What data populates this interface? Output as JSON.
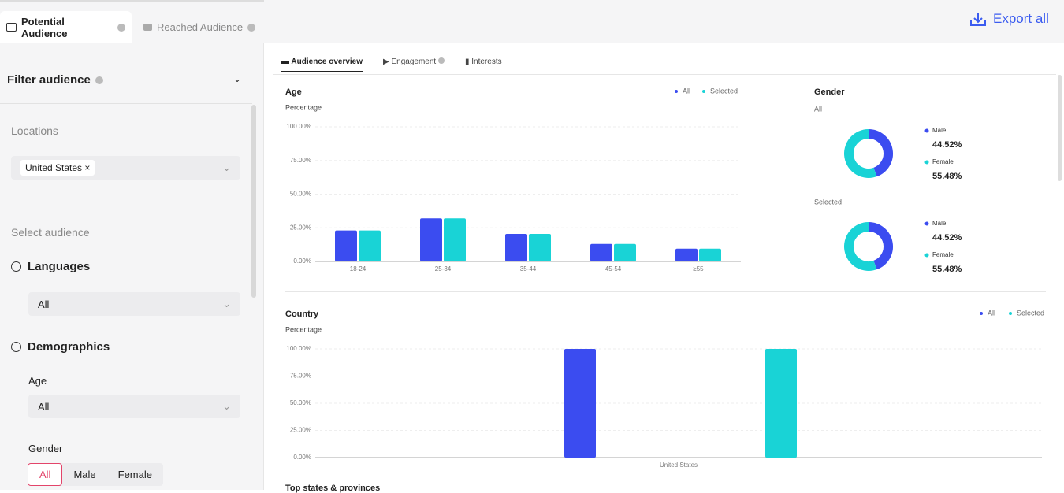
{
  "tabs": [
    "Potential Audience",
    "Reached Audience"
  ],
  "export": "Export all",
  "sidebar": {
    "title": "Filter audience",
    "locations": {
      "label": "Locations",
      "chip": "United States"
    },
    "select_audience": "Select audience",
    "languages": {
      "label": "Languages",
      "value": "All"
    },
    "demographics": {
      "label": "Demographics",
      "age": {
        "label": "Age",
        "value": "All"
      },
      "gender": {
        "label": "Gender",
        "options": [
          "All",
          "Male",
          "Female"
        ]
      }
    }
  },
  "subtabs": [
    "Audience overview",
    "Engagement",
    "Interests"
  ],
  "age_chart": {
    "type": "bar",
    "title": "Age",
    "y_label": "Percentage",
    "categories": [
      "18-24",
      "25-34",
      "35-44",
      "45-54",
      "≥55"
    ],
    "series": [
      {
        "name": "All",
        "color": "#3b4cf0",
        "values": [
          23,
          32,
          20.5,
          13,
          9.5
        ]
      },
      {
        "name": "Selected",
        "color": "#19d3d6",
        "values": [
          23,
          32,
          20.5,
          13,
          9.5
        ]
      }
    ],
    "ylim": [
      0,
      100
    ],
    "yticks": [
      {
        "value": 0,
        "label": "0.00%"
      },
      {
        "value": 25,
        "label": "25.00%"
      },
      {
        "value": 50,
        "label": "50.00%"
      },
      {
        "value": 75,
        "label": "75.00%"
      },
      {
        "value": 100,
        "label": "100.00%"
      }
    ],
    "grid": true
  },
  "gender": {
    "title": "Gender",
    "charts": [
      {
        "type": "donut",
        "title": "All",
        "categories": [
          "Male",
          "Female"
        ],
        "values": [
          44.52,
          55.48
        ],
        "value_labels": [
          "44.52%",
          "55.48%"
        ],
        "colors": [
          "#3b4cf0",
          "#19d3d6"
        ]
      },
      {
        "type": "donut",
        "title": "Selected",
        "categories": [
          "Male",
          "Female"
        ],
        "values": [
          44.52,
          55.48
        ],
        "value_labels": [
          "44.52%",
          "55.48%"
        ],
        "colors": [
          "#3b4cf0",
          "#19d3d6"
        ]
      }
    ]
  },
  "country_chart": {
    "type": "bar",
    "title": "Country",
    "y_label": "Percentage",
    "categories": [
      "United States"
    ],
    "series": [
      {
        "name": "All",
        "color": "#3b4cf0",
        "values": [
          100
        ]
      },
      {
        "name": "Selected",
        "color": "#19d3d6",
        "values": [
          100
        ]
      }
    ],
    "ylim": [
      0,
      100
    ],
    "yticks": [
      {
        "value": 0,
        "label": "0.00%"
      },
      {
        "value": 25,
        "label": "25.00%"
      },
      {
        "value": 50,
        "label": "50.00%"
      },
      {
        "value": 75,
        "label": "75.00%"
      },
      {
        "value": 100,
        "label": "100.00%"
      }
    ],
    "grid": true
  },
  "next_section": "Top states & provinces"
}
